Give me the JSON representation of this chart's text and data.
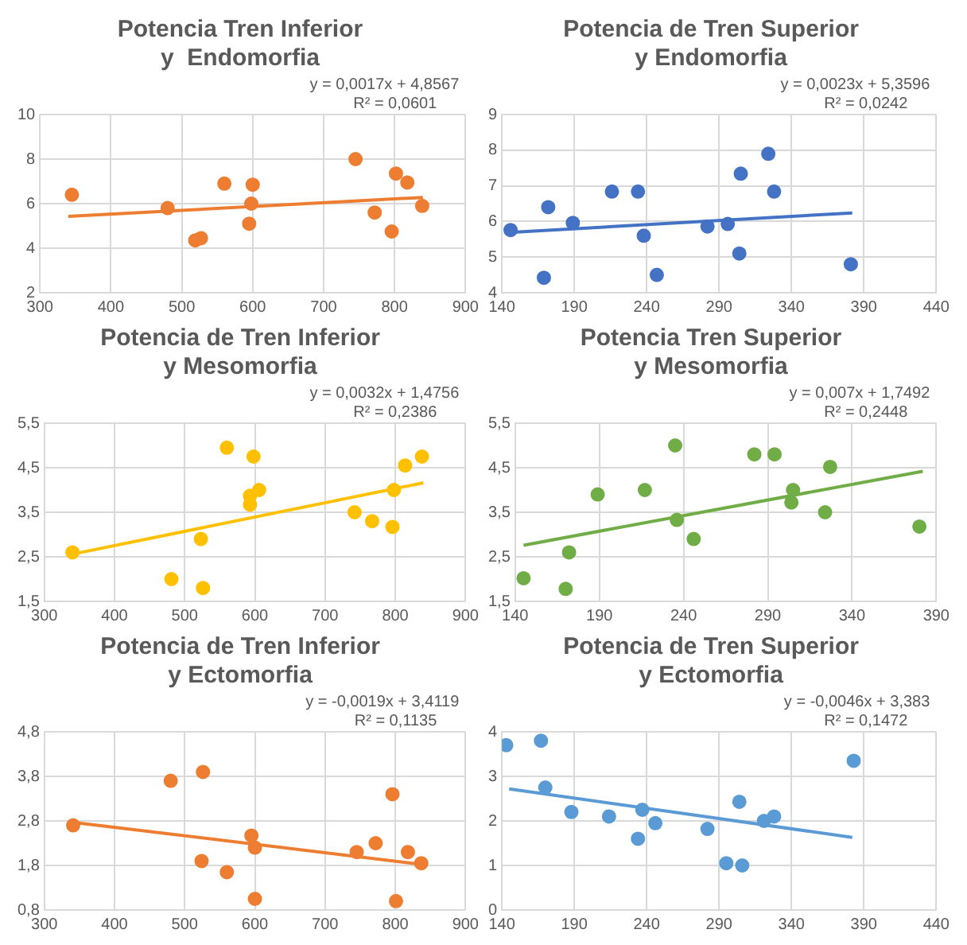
{
  "chart_data": [
    {
      "type": "scatter",
      "title": "Potencia Tren Inferior\ny  Endomorfia",
      "grid": true,
      "legend": false,
      "annotations": [
        "y = 0,0017x + 4,8567",
        "R² = 0,0601"
      ],
      "xlim": [
        300,
        900
      ],
      "xticks": [
        300,
        400,
        500,
        600,
        700,
        800,
        900
      ],
      "ylim": [
        2,
        10
      ],
      "yticks": [
        2,
        4,
        6,
        8,
        10
      ],
      "series": [
        {
          "color": "#ed7d31",
          "marker": "circle",
          "x": [
            345,
            480,
            519,
            527,
            560,
            595,
            598,
            600,
            745,
            772,
            796,
            802,
            818,
            839
          ],
          "values": [
            6.4,
            5.8,
            4.35,
            4.45,
            6.9,
            5.1,
            6.0,
            6.85,
            8.0,
            5.6,
            4.75,
            7.35,
            6.95,
            5.9
          ]
        },
        {
          "type": "line",
          "color": "#ed7d31",
          "x": [
            340,
            840
          ],
          "values": [
            5.43,
            6.28
          ]
        }
      ]
    },
    {
      "type": "scatter",
      "title": "Potencia de Tren Superior\ny Endomorfia",
      "grid": true,
      "legend": false,
      "annotations": [
        "y = 0,0023x + 5,3596",
        "R² = 0,0242"
      ],
      "xlim": [
        140,
        440
      ],
      "xticks": [
        140,
        190,
        240,
        290,
        340,
        390,
        440
      ],
      "ylim": [
        4,
        9
      ],
      "yticks": [
        4,
        5,
        6,
        7,
        8,
        9
      ],
      "series": [
        {
          "color": "#4472c4",
          "marker": "circle",
          "x": [
            146,
            169,
            172,
            189,
            216,
            234,
            238,
            247,
            282,
            296,
            304,
            305,
            324,
            328,
            381
          ],
          "values": [
            5.76,
            4.42,
            6.4,
            5.96,
            6.84,
            6.84,
            5.6,
            4.5,
            5.86,
            5.93,
            5.1,
            7.34,
            7.9,
            6.84,
            4.8
          ]
        },
        {
          "type": "line",
          "color": "#4472c4",
          "x": [
            145,
            382
          ],
          "values": [
            5.69,
            6.24
          ]
        }
      ]
    },
    {
      "type": "scatter",
      "title": "Potencia de Tren Inferior\ny Mesomorfia",
      "grid": true,
      "legend": false,
      "annotations": [
        "y = 0,0032x + 1,4756",
        "R² = 0,2386"
      ],
      "xlim": [
        300,
        900
      ],
      "xticks": [
        300,
        400,
        500,
        600,
        700,
        800,
        900
      ],
      "ylim": [
        1.5,
        5.5
      ],
      "yticks": [
        {
          "value": 1.5,
          "label": "1,5"
        },
        {
          "value": 2.5,
          "label": "2,5"
        },
        {
          "value": 3.5,
          "label": "3,5"
        },
        {
          "value": 4.5,
          "label": "4,5"
        },
        {
          "value": 5.5,
          "label": "5,5"
        }
      ],
      "series": [
        {
          "color": "#ffc000",
          "marker": "circle",
          "x": [
            340,
            481,
            526,
            523,
            560,
            598,
            593,
            593,
            606,
            742,
            767,
            796,
            798,
            814,
            838
          ],
          "values": [
            2.6,
            2.0,
            1.8,
            2.9,
            4.95,
            4.75,
            3.87,
            3.67,
            4.0,
            3.5,
            3.3,
            3.17,
            4.0,
            4.55,
            4.75
          ]
        },
        {
          "type": "line",
          "color": "#ffc000",
          "x": [
            340,
            840
          ],
          "values": [
            2.56,
            4.16
          ]
        }
      ]
    },
    {
      "type": "scatter",
      "title": "Potencia Tren Superior\ny Mesomorfia",
      "grid": true,
      "legend": false,
      "annotations": [
        "y = 0,007x + 1,7492",
        "R² = 0,2448"
      ],
      "xlim": [
        140,
        390
      ],
      "xticks": [
        140,
        190,
        240,
        290,
        340,
        390
      ],
      "ylim": [
        1.5,
        5.5
      ],
      "yticks": [
        {
          "value": 1.5,
          "label": "1,5"
        },
        {
          "value": 2.5,
          "label": "2,5"
        },
        {
          "value": 3.5,
          "label": "3,5"
        },
        {
          "value": 4.5,
          "label": "4,5"
        },
        {
          "value": 5.5,
          "label": "5,5"
        }
      ],
      "series": [
        {
          "color": "#70ad47",
          "marker": "circle",
          "x": [
            145,
            170,
            172,
            189,
            217,
            235,
            236,
            246,
            282,
            294,
            305,
            304,
            324,
            327,
            380
          ],
          "values": [
            2.02,
            1.78,
            2.6,
            3.9,
            4.0,
            5.0,
            3.33,
            2.9,
            4.8,
            4.8,
            4.0,
            3.72,
            3.5,
            4.52,
            3.18
          ]
        },
        {
          "type": "line",
          "color": "#70ad47",
          "x": [
            145,
            382
          ],
          "values": [
            2.76,
            4.42
          ]
        }
      ]
    },
    {
      "type": "scatter",
      "title": "Potencia de Tren Inferior\ny Ectomorfia",
      "grid": true,
      "legend": false,
      "annotations": [
        "y = -0,0019x + 3,4119",
        "R² = 0,1135"
      ],
      "xlim": [
        300,
        900
      ],
      "xticks": [
        300,
        400,
        500,
        600,
        700,
        800,
        900
      ],
      "ylim": [
        0.8,
        4.8
      ],
      "yticks": [
        {
          "value": 0.8,
          "label": "0,8"
        },
        {
          "value": 1.8,
          "label": "1,8"
        },
        {
          "value": 2.8,
          "label": "2,8"
        },
        {
          "value": 3.8,
          "label": "3,8"
        },
        {
          "value": 4.8,
          "label": "4,8"
        }
      ],
      "series": [
        {
          "color": "#ed7d31",
          "marker": "circle",
          "x": [
            341,
            480,
            526,
            524,
            560,
            595,
            600,
            600,
            745,
            772,
            796,
            801,
            818,
            837
          ],
          "values": [
            2.7,
            3.7,
            3.9,
            1.9,
            1.65,
            2.47,
            2.2,
            1.05,
            2.1,
            2.3,
            3.4,
            1.0,
            2.1,
            1.85
          ]
        },
        {
          "type": "line",
          "color": "#ed7d31",
          "x": [
            340,
            840
          ],
          "values": [
            2.77,
            1.82
          ]
        }
      ]
    },
    {
      "type": "scatter",
      "title": "Potencia de Tren Superior\ny Ectomorfia",
      "grid": true,
      "legend": false,
      "annotations": [
        "y = -0,0046x + 3,383",
        "R² = 0,1472"
      ],
      "xlim": [
        140,
        440
      ],
      "xticks": [
        140,
        190,
        240,
        290,
        340,
        390,
        440
      ],
      "ylim": [
        0,
        4
      ],
      "yticks": [
        0,
        1,
        2,
        3,
        4
      ],
      "series": [
        {
          "color": "#5b9bd5",
          "marker": "circle",
          "x": [
            143,
            167,
            170,
            188,
            214,
            234,
            237,
            246,
            282,
            295,
            306,
            304,
            321,
            328,
            383
          ],
          "values": [
            3.7,
            3.8,
            2.75,
            2.2,
            2.1,
            1.6,
            2.25,
            1.95,
            1.82,
            1.05,
            1.0,
            2.43,
            2.0,
            2.1,
            3.35
          ]
        },
        {
          "type": "line",
          "color": "#5b9bd5",
          "x": [
            145,
            382
          ],
          "values": [
            2.72,
            1.63
          ]
        }
      ]
    }
  ]
}
